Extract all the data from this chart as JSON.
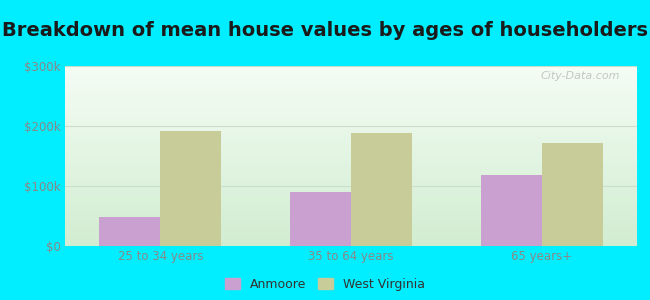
{
  "title": "Breakdown of mean house values by ages of householders",
  "categories": [
    "25 to 34 years",
    "35 to 64 years",
    "65 years+"
  ],
  "anmoore_values": [
    48000,
    90000,
    118000
  ],
  "wv_values": [
    192000,
    188000,
    172000
  ],
  "ylim": [
    0,
    300000
  ],
  "yticks": [
    0,
    100000,
    200000,
    300000
  ],
  "ytick_labels": [
    "$0",
    "$100k",
    "$200k",
    "$300k"
  ],
  "anmoore_color": "#c9a0d0",
  "wv_color": "#c8cc98",
  "background_outer": "#00eeff",
  "title_fontsize": 14,
  "title_color": "#1a1a1a",
  "legend_labels": [
    "Anmoore",
    "West Virginia"
  ],
  "bar_width": 0.32,
  "watermark": "City-Data.com",
  "tick_color": "#888888",
  "grid_color": "#ccddcc"
}
